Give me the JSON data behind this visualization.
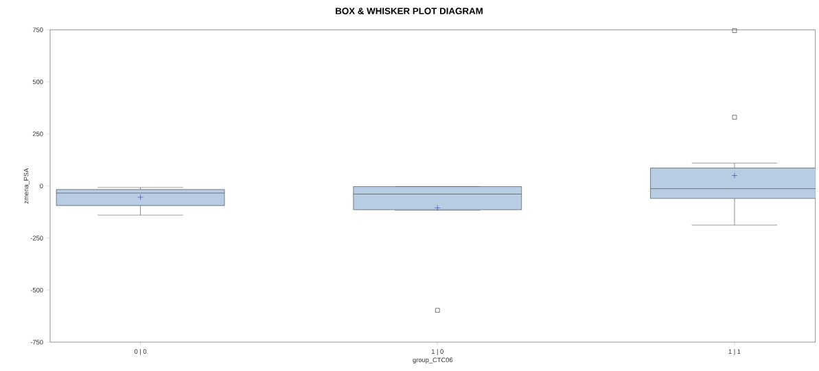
{
  "chart_data": {
    "type": "box",
    "title": "BOX & WHISKER PLOT DIAGRAM",
    "xlabel": "group_CTC06",
    "ylabel": "zmena_PSA",
    "categories": [
      "0 | 0",
      "1 | 0",
      "1 | 1"
    ],
    "boxes": [
      {
        "low": -140,
        "q1": -94,
        "median": -34,
        "q3": -17,
        "high": -7,
        "mean": -54
      },
      {
        "low": -117,
        "q1": -114,
        "median": -39,
        "q3": -3,
        "high": -3,
        "mean": -105,
        "outliers": [
          -597
        ]
      },
      {
        "low": -188,
        "q1": -60,
        "median": -13,
        "q3": 86,
        "high": 110,
        "mean": 50,
        "outliers": [
          330,
          746
        ]
      }
    ],
    "color": "#b8cce4",
    "ylim": [
      -750,
      750
    ],
    "yticks": [
      -750,
      -500,
      -250,
      0,
      250,
      500,
      750
    ]
  }
}
